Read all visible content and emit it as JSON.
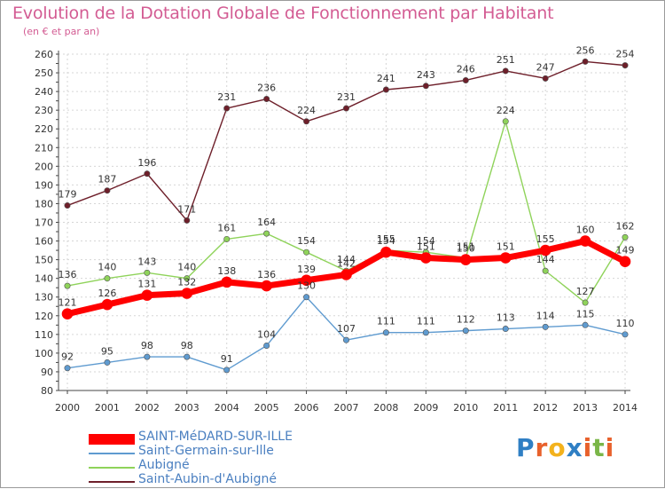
{
  "header": {
    "title": "Evolution de la Dotation Globale de Fonctionnement par Habitant",
    "subtitle": "(en € et par an)"
  },
  "logo": {
    "text": "Proxiti",
    "colors": [
      "#2f7fc4",
      "#e8612c",
      "#f3b21d",
      "#2f7fc4",
      "#e8612c",
      "#7ab648",
      "#e8612c"
    ]
  },
  "chart_data": {
    "type": "line",
    "x": [
      "2000",
      "2001",
      "2002",
      "2003",
      "2004",
      "2005",
      "2006",
      "2007",
      "2008",
      "2009",
      "2010",
      "2011",
      "2012",
      "2013",
      "2014"
    ],
    "ylim": [
      80,
      260
    ],
    "yticks": [
      80,
      90,
      100,
      110,
      120,
      130,
      140,
      150,
      160,
      170,
      180,
      190,
      200,
      210,
      220,
      230,
      240,
      250,
      260
    ],
    "grid": true,
    "legend_position": "bottom-left",
    "series": [
      {
        "name": "Saint-Aubin-d'Aubigné",
        "color": "#6e1f2a",
        "width": 1.4,
        "values": [
          179,
          187,
          196,
          171,
          231,
          236,
          224,
          231,
          241,
          243,
          246,
          251,
          247,
          256,
          254
        ]
      },
      {
        "name": "Aubigné",
        "color": "#8fd35a",
        "width": 1.4,
        "values": [
          136,
          140,
          143,
          140,
          161,
          164,
          154,
          144,
          155,
          154,
          151,
          224,
          144,
          127,
          162
        ]
      },
      {
        "name": "Saint-Germain-sur-Ille",
        "color": "#5f9bd0",
        "width": 1.4,
        "values": [
          92,
          95,
          98,
          98,
          91,
          104,
          130,
          107,
          111,
          111,
          112,
          113,
          114,
          115,
          110
        ]
      },
      {
        "name": "SAINT-MéDARD-SUR-ILLE",
        "color": "#ff0000",
        "width": 7,
        "values": [
          121,
          126,
          131,
          132,
          138,
          136,
          139,
          142,
          154,
          151,
          150,
          151,
          155,
          160,
          149
        ]
      }
    ]
  }
}
